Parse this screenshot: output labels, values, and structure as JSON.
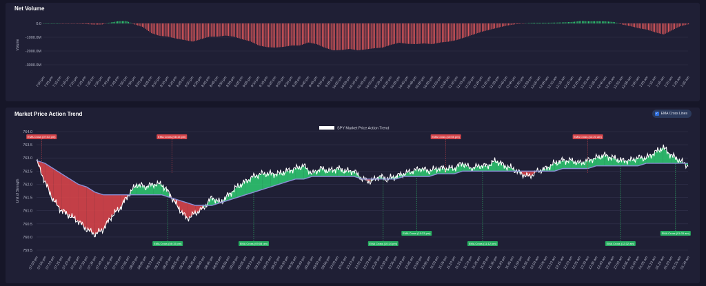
{
  "volume_panel": {
    "title": "Net Volume"
  },
  "trend_panel": {
    "title": "Market Price Action Trend",
    "toggle_label": "EMA Cross Lines",
    "toggle_checked": true
  },
  "colors": {
    "up": "#2ecc71",
    "down": "#e0454a",
    "price": "#ffffff",
    "ema_slow": "#8a8fd6",
    "neg_bar": "#d9565a"
  },
  "chart_data": [
    {
      "type": "bar",
      "title": "Net Volume",
      "xlabel": "",
      "ylabel": "Volume",
      "yticks": [
        "0.0",
        "-1000.0M",
        "-2000.0M",
        "-3000.0M"
      ],
      "ylim": [
        -3500,
        400
      ],
      "categories": [
        "7:00 pm",
        "7:05 pm",
        "7:10 pm",
        "7:15 pm",
        "7:20 pm",
        "7:25 pm",
        "7:30 pm",
        "7:35 pm",
        "7:40 pm",
        "7:45 pm",
        "7:50 pm",
        "7:55 pm",
        "8:00 pm",
        "8:05 pm",
        "8:10 pm",
        "8:15 pm",
        "8:20 pm",
        "8:25 pm",
        "8:30 pm",
        "8:35 pm",
        "8:40 pm",
        "8:45 pm",
        "8:50 pm",
        "8:55 pm",
        "9:00 pm",
        "9:05 pm",
        "9:10 pm",
        "9:15 pm",
        "9:20 pm",
        "9:25 pm",
        "9:30 pm",
        "9:35 pm",
        "9:40 pm",
        "9:45 pm",
        "9:50 pm",
        "9:55 pm",
        "10:00 pm",
        "10:05 pm",
        "10:10 pm",
        "10:15 pm",
        "10:20 pm",
        "10:25 pm",
        "10:30 pm",
        "10:35 pm",
        "10:40 pm",
        "10:45 pm",
        "10:50 pm",
        "10:55 pm",
        "11:00 pm",
        "11:05 pm",
        "11:10 pm",
        "11:15 pm",
        "11:20 pm",
        "11:25 pm",
        "11:30 pm",
        "11:35 pm",
        "11:40 pm",
        "11:45 pm",
        "11:50 pm",
        "11:55 pm",
        "12:00 am",
        "12:05 am",
        "12:10 am",
        "12:15 am",
        "12:20 am",
        "12:25 am",
        "12:30 am",
        "12:35 am",
        "12:40 am",
        "12:45 am",
        "12:50 am",
        "12:55 am",
        "1:00 am",
        "1:05 am",
        "1:10 am",
        "1:15 am",
        "1:20 am",
        "1:25 am",
        "1:30 am"
      ],
      "values": [
        0,
        0,
        0,
        -10,
        -20,
        -40,
        -80,
        -80,
        60,
        160,
        170,
        -80,
        -260,
        -700,
        -900,
        -950,
        -1100,
        -1200,
        -1320,
        -1150,
        -960,
        -960,
        -880,
        -960,
        -1150,
        -1300,
        -1600,
        -1720,
        -1750,
        -1700,
        -1600,
        -1600,
        -1380,
        -1500,
        -1760,
        -1950,
        -1930,
        -1850,
        -1950,
        -1880,
        -1800,
        -1750,
        -1550,
        -1400,
        -1480,
        -1500,
        -1450,
        -1500,
        -1380,
        -1320,
        -1200,
        -1000,
        -800,
        -600,
        -450,
        -300,
        -160,
        -60,
        -10,
        50,
        50,
        50,
        60,
        80,
        110,
        180,
        150,
        160,
        150,
        100,
        -80,
        -200,
        -350,
        -450,
        -650,
        -800,
        -500,
        -200,
        -60
      ],
      "series_note": ""
    },
    {
      "type": "line",
      "title": "SPY Market Price Action Trend",
      "xlabel": "",
      "ylabel": "Unit of Strength",
      "yticks": [
        "764.0",
        "763.5",
        "763.0",
        "762.5",
        "762.0",
        "761.5",
        "761.0",
        "760.5",
        "760.0",
        "759.5"
      ],
      "ylim": [
        759.5,
        764.0
      ],
      "x_tick_labels": [
        "07:00 pm",
        "07:05 pm",
        "07:10 pm",
        "07:15 pm",
        "07:20 pm",
        "07:25 pm",
        "07:30 pm",
        "07:35 pm",
        "07:40 pm",
        "07:45 pm",
        "07:50 pm",
        "07:55 pm",
        "08:00 pm",
        "08:05 pm",
        "08:10 pm",
        "08:15 pm",
        "08:20 pm",
        "08:25 pm",
        "08:30 pm",
        "08:35 pm",
        "08:40 pm",
        "08:45 pm",
        "08:50 pm",
        "08:55 pm",
        "09:00 pm",
        "09:05 pm",
        "09:10 pm",
        "09:15 pm",
        "09:20 pm",
        "09:25 pm",
        "09:30 pm",
        "09:35 pm",
        "09:40 pm",
        "09:45 pm",
        "09:50 pm",
        "09:55 pm",
        "10:00 pm",
        "10:05 pm",
        "10:10 pm",
        "10:15 pm",
        "10:20 pm",
        "10:25 pm",
        "10:30 pm",
        "10:35 pm",
        "10:40 pm",
        "10:45 pm",
        "10:50 pm",
        "10:55 pm",
        "11:00 pm",
        "11:05 pm",
        "11:10 pm",
        "11:15 pm",
        "11:20 pm",
        "11:25 pm",
        "11:30 pm",
        "11:35 pm",
        "11:40 pm",
        "11:45 pm",
        "11:50 pm",
        "11:55 pm",
        "12:00 am",
        "12:05 am",
        "12:10 am",
        "12:15 am",
        "12:20 am",
        "12:25 am",
        "12:30 am",
        "12:35 am",
        "12:40 am",
        "12:45 am",
        "12:50 am",
        "12:55 am",
        "01:00 am",
        "01:05 am",
        "01:10 am",
        "01:15 am",
        "01:20 am",
        "01:25 am",
        "01:30 am"
      ],
      "legend": {
        "label": "SPY Market Price Action Trend",
        "position": "top-center"
      },
      "series": [
        {
          "name": "SPY Market Price Action Trend",
          "values": [
            762.9,
            762.1,
            761.4,
            761.0,
            760.8,
            760.6,
            760.3,
            760.1,
            760.3,
            760.8,
            761.1,
            761.6,
            762.0,
            761.9,
            762.0,
            762.0,
            761.6,
            761.1,
            760.7,
            760.9,
            761.1,
            761.5,
            761.3,
            761.6,
            761.9,
            762.1,
            762.3,
            762.4,
            762.4,
            762.4,
            762.5,
            762.6,
            762.7,
            762.4,
            762.6,
            762.5,
            762.6,
            762.5,
            762.5,
            762.2,
            762.1,
            762.3,
            762.2,
            762.3,
            762.4,
            762.5,
            762.6,
            762.5,
            762.6,
            762.6,
            762.6,
            762.8,
            762.6,
            762.7,
            762.7,
            762.9,
            762.7,
            762.6,
            762.4,
            762.3,
            762.5,
            762.6,
            762.8,
            762.9,
            762.9,
            762.8,
            762.9,
            763.0,
            763.1,
            763.0,
            762.9,
            762.9,
            763.0,
            763.0,
            763.2,
            763.4,
            763.1,
            762.9,
            762.7
          ]
        },
        {
          "name": "",
          "values": [
            762.9,
            762.8,
            762.6,
            762.4,
            762.2,
            762.0,
            761.9,
            761.7,
            761.6,
            761.6,
            761.6,
            761.6,
            761.6,
            761.6,
            761.6,
            761.6,
            761.5,
            761.4,
            761.3,
            761.2,
            761.2,
            761.2,
            761.3,
            761.4,
            761.5,
            761.6,
            761.7,
            761.8,
            761.9,
            762.0,
            762.1,
            762.2,
            762.2,
            762.3,
            762.3,
            762.3,
            762.3,
            762.3,
            762.3,
            762.2,
            762.2,
            762.2,
            762.2,
            762.2,
            762.3,
            762.3,
            762.3,
            762.3,
            762.4,
            762.4,
            762.4,
            762.5,
            762.5,
            762.5,
            762.5,
            762.5,
            762.5,
            762.5,
            762.5,
            762.5,
            762.5,
            762.5,
            762.5,
            762.6,
            762.6,
            762.6,
            762.6,
            762.7,
            762.7,
            762.7,
            762.7,
            762.7,
            762.7,
            762.8,
            762.8,
            762.8,
            762.8,
            762.8,
            762.8
          ]
        }
      ],
      "ema_cross_down_labels": [
        {
          "x_index": 0.6,
          "text": "EMA Cross (07:02 pm)"
        },
        {
          "x_index": 16.2,
          "text": "EMA Cross (08:15 pm)"
        },
        {
          "x_index": 49.0,
          "text": "EMA Cross (10:55 pm)"
        },
        {
          "x_index": 66.0,
          "text": "EMA Cross (12:20 am)"
        }
      ],
      "ema_cross_up_labels": [
        {
          "x_index": 15.7,
          "text": "EMA Cross (08:15 pm)"
        },
        {
          "x_index": 26.0,
          "text": "EMA Cross (09:08 pm)"
        },
        {
          "x_index": 41.5,
          "text": "EMA Cross (10:14 pm)"
        },
        {
          "x_index": 45.5,
          "text": "EMA Cross (10:33 pm)"
        },
        {
          "x_index": 53.4,
          "text": "EMA Cross (11:12 pm)"
        },
        {
          "x_index": 69.9,
          "text": "EMA Cross (12:32 am)"
        },
        {
          "x_index": 76.5,
          "text": "EMA Cross (01:03 am)"
        }
      ]
    }
  ]
}
